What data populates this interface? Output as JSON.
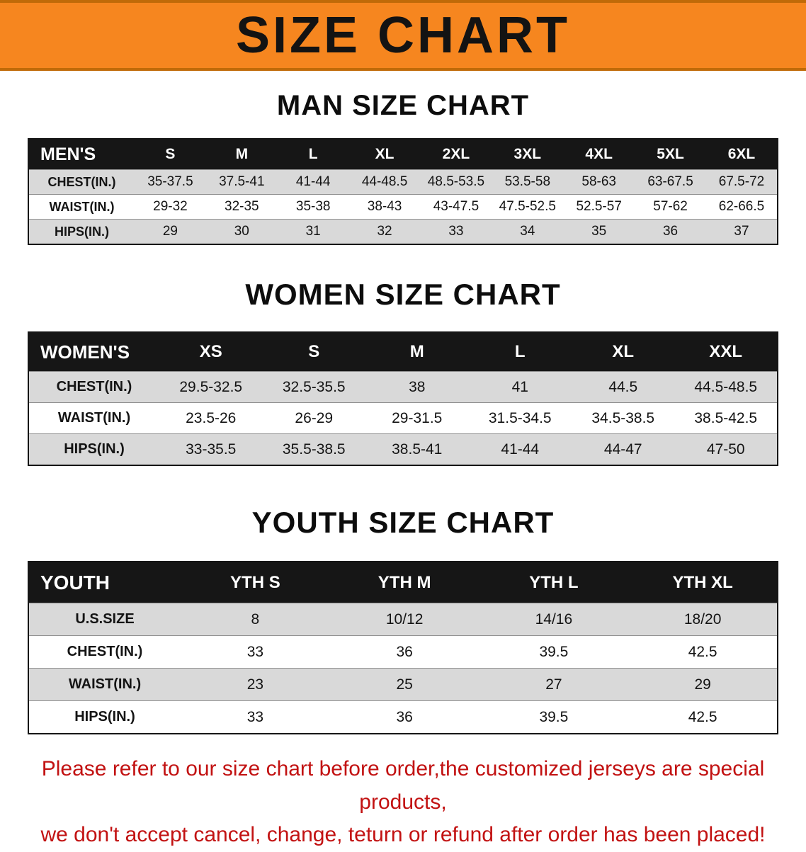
{
  "banner": {
    "title": "SIZE CHART",
    "bg_color": "#f6861f",
    "text_color": "#131313"
  },
  "sections": [
    {
      "heading": "MAN SIZE CHART",
      "table": {
        "header": [
          "MEN'S",
          "S",
          "M",
          "L",
          "XL",
          "2XL",
          "3XL",
          "4XL",
          "5XL",
          "6XL"
        ],
        "rows": [
          [
            "CHEST(IN.)",
            "35-37.5",
            "37.5-41",
            "41-44",
            "44-48.5",
            "48.5-53.5",
            "53.5-58",
            "58-63",
            "63-67.5",
            "67.5-72"
          ],
          [
            "WAIST(IN.)",
            "29-32",
            "32-35",
            "35-38",
            "38-43",
            "43-47.5",
            "47.5-52.5",
            "52.5-57",
            "57-62",
            "62-66.5"
          ],
          [
            "HIPS(IN.)",
            "29",
            "30",
            "31",
            "32",
            "33",
            "34",
            "35",
            "36",
            "37"
          ]
        ]
      }
    },
    {
      "heading": "WOMEN SIZE CHART",
      "table": {
        "header": [
          "WOMEN'S",
          "XS",
          "S",
          "M",
          "L",
          "XL",
          "XXL"
        ],
        "rows": [
          [
            "CHEST(IN.)",
            "29.5-32.5",
            "32.5-35.5",
            "38",
            "41",
            "44.5",
            "44.5-48.5"
          ],
          [
            "WAIST(IN.)",
            "23.5-26",
            "26-29",
            "29-31.5",
            "31.5-34.5",
            "34.5-38.5",
            "38.5-42.5"
          ],
          [
            "HIPS(IN.)",
            "33-35.5",
            "35.5-38.5",
            "38.5-41",
            "41-44",
            "44-47",
            "47-50"
          ]
        ]
      }
    },
    {
      "heading": "YOUTH SIZE CHART",
      "table": {
        "header": [
          "YOUTH",
          "YTH S",
          "YTH M",
          "YTH L",
          "YTH XL"
        ],
        "rows": [
          [
            "U.S.SIZE",
            "8",
            "10/12",
            "14/16",
            "18/20"
          ],
          [
            "CHEST(IN.)",
            "33",
            "36",
            "39.5",
            "42.5"
          ],
          [
            "WAIST(IN.)",
            "23",
            "25",
            "27",
            "29"
          ],
          [
            "HIPS(IN.)",
            "33",
            "36",
            "39.5",
            "42.5"
          ]
        ]
      }
    }
  ],
  "disclaimer": {
    "line1": "Please refer to our size chart before order,the customized jerseys are special products,",
    "line2": "we don't accept cancel, change, teturn or refund after order has been placed!",
    "text_color": "#c21212"
  }
}
